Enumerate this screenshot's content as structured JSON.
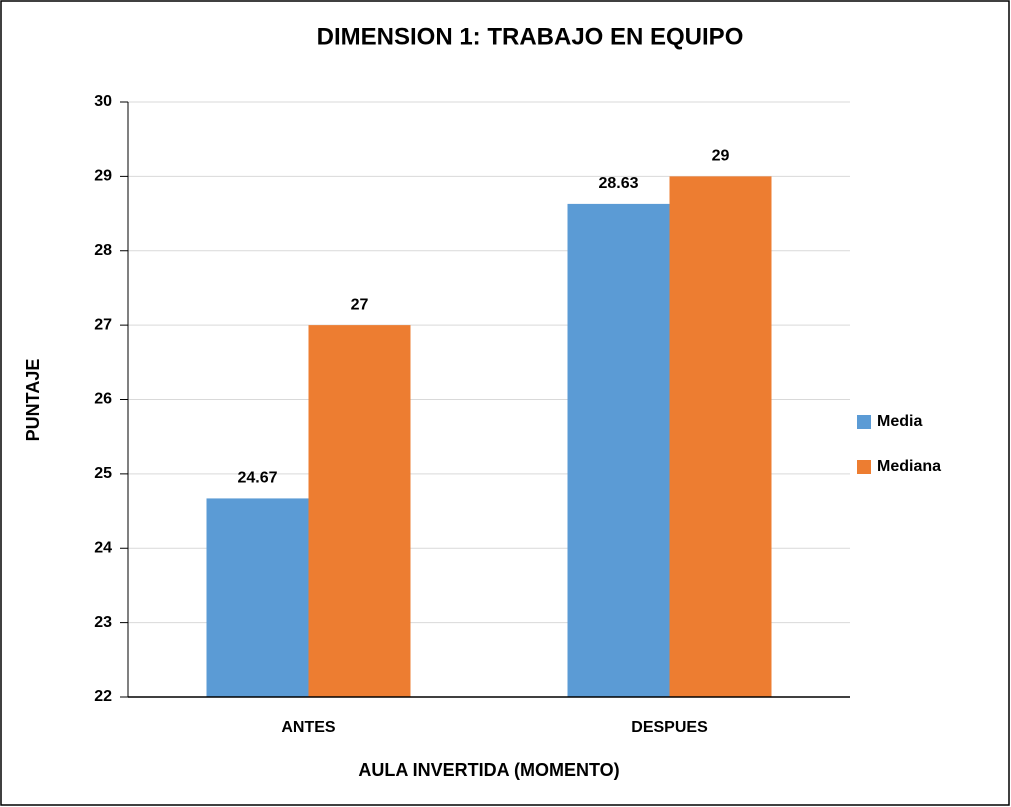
{
  "chart_data": {
    "type": "bar",
    "title": "DIMENSION 1: TRABAJO EN EQUIPO",
    "x_label": "AULA INVERTIDA (MOMENTO)",
    "y_label": "PUNTAJE",
    "categories": [
      "ANTES",
      "DESPUES"
    ],
    "series": [
      {
        "name": "Media",
        "color": "#5b9bd5",
        "values": [
          24.67,
          28.63
        ]
      },
      {
        "name": "Mediana",
        "color": "#ed7d31",
        "values": [
          27,
          29
        ]
      }
    ],
    "ylim": [
      22,
      30
    ],
    "yticks": [
      22,
      23,
      24,
      25,
      26,
      27,
      28,
      29,
      30
    ],
    "grid": true,
    "legend": "right"
  }
}
